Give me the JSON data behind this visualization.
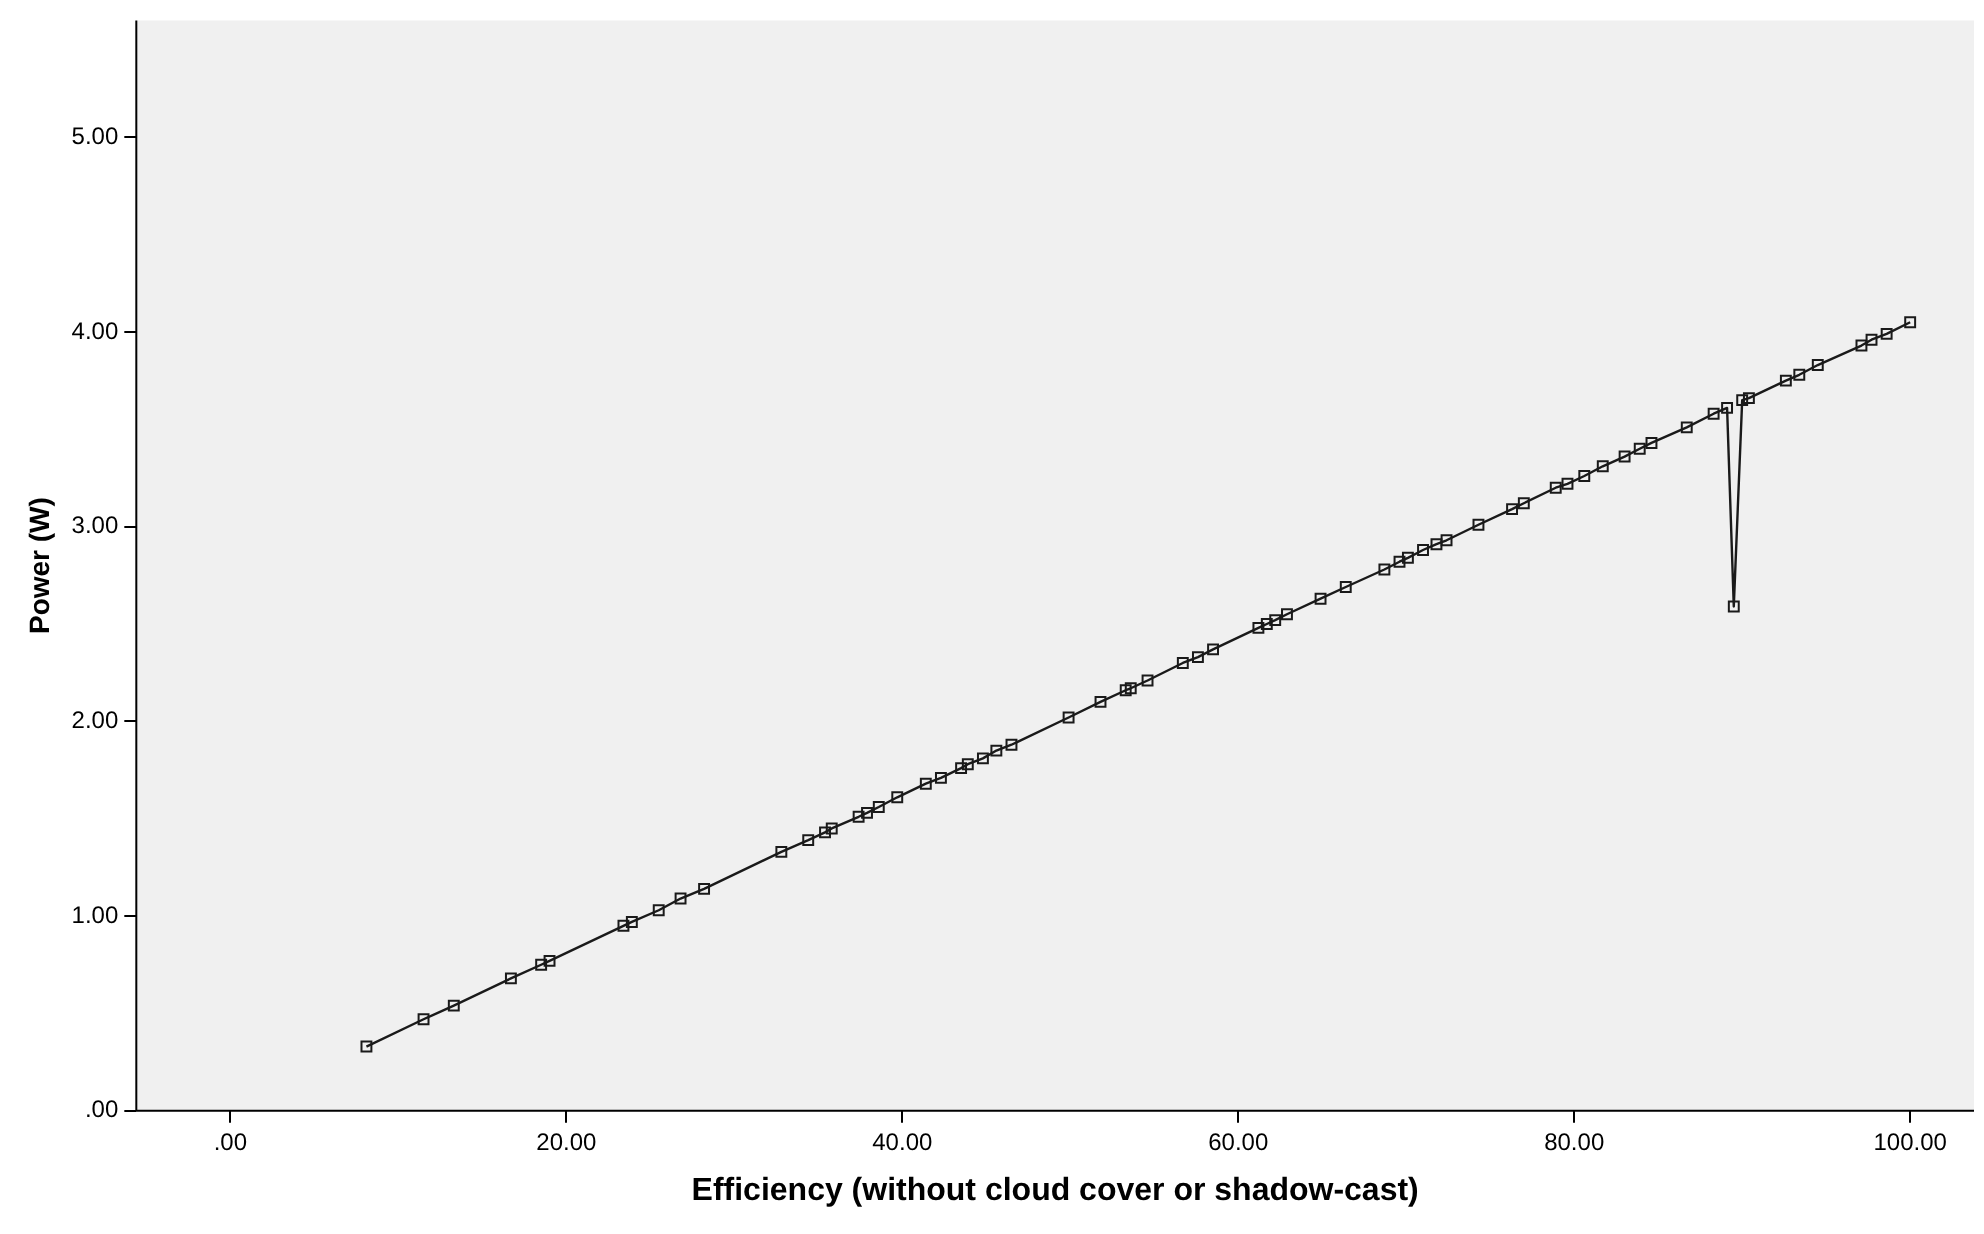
{
  "chart_data": {
    "type": "line",
    "xlabel": "Efficiency (without cloud cover or shadow-cast)",
    "ylabel": "Power (W)",
    "xlim": [
      -5.6,
      103.8
    ],
    "xticks": [
      {
        "value": 0,
        "label": ".00"
      },
      {
        "value": 20,
        "label": "20.00"
      },
      {
        "value": 40,
        "label": "40.00"
      },
      {
        "value": 60,
        "label": "60.00"
      },
      {
        "value": 80,
        "label": "80.00"
      },
      {
        "value": 100,
        "label": "100.00"
      }
    ],
    "ylim": [
      0,
      5.6
    ],
    "yticks": [
      {
        "value": 0,
        "label": ".00"
      },
      {
        "value": 1,
        "label": "1.00"
      },
      {
        "value": 2,
        "label": "2.00"
      },
      {
        "value": 3,
        "label": "3.00"
      },
      {
        "value": 4,
        "label": "4.00"
      },
      {
        "value": 5,
        "label": "5.00"
      }
    ],
    "grid": false,
    "legend": false,
    "marker": "square",
    "line_style": "solid",
    "series": [
      {
        "color": "#1a1a1a",
        "x": [
          8.1,
          11.5,
          13.3,
          16.7,
          18.5,
          19.0,
          23.4,
          23.9,
          25.5,
          26.8,
          28.2,
          32.8,
          34.4,
          35.4,
          35.8,
          37.4,
          37.9,
          38.6,
          39.7,
          41.4,
          42.3,
          43.5,
          43.9,
          44.8,
          45.6,
          46.5,
          49.9,
          51.8,
          53.3,
          53.6,
          54.6,
          56.7,
          57.6,
          58.5,
          61.2,
          61.7,
          62.2,
          62.9,
          64.9,
          66.4,
          68.7,
          69.6,
          70.1,
          71.0,
          71.8,
          72.4,
          74.3,
          76.3,
          77.0,
          78.9,
          79.6,
          80.6,
          81.7,
          83.0,
          83.9,
          84.6,
          86.7,
          88.3,
          89.1,
          89.5,
          90.0,
          90.4,
          92.6,
          93.4,
          94.5,
          97.1,
          97.7,
          98.6,
          100
        ],
        "values": [
          0.33,
          0.47,
          0.54,
          0.68,
          0.75,
          0.77,
          0.95,
          0.97,
          1.03,
          1.09,
          1.14,
          1.33,
          1.39,
          1.43,
          1.45,
          1.51,
          1.53,
          1.56,
          1.61,
          1.68,
          1.71,
          1.76,
          1.78,
          1.81,
          1.85,
          1.88,
          2.02,
          2.1,
          2.16,
          2.17,
          2.21,
          2.3,
          2.33,
          2.37,
          2.48,
          2.5,
          2.52,
          2.55,
          2.63,
          2.69,
          2.78,
          2.82,
          2.84,
          2.88,
          2.91,
          2.93,
          3.01,
          3.09,
          3.12,
          3.2,
          3.22,
          3.26,
          3.31,
          3.36,
          3.4,
          3.43,
          3.51,
          3.58,
          3.61,
          2.59,
          3.65,
          3.66,
          3.75,
          3.78,
          3.83,
          3.93,
          3.96,
          3.99,
          4.05
        ]
      }
    ]
  }
}
